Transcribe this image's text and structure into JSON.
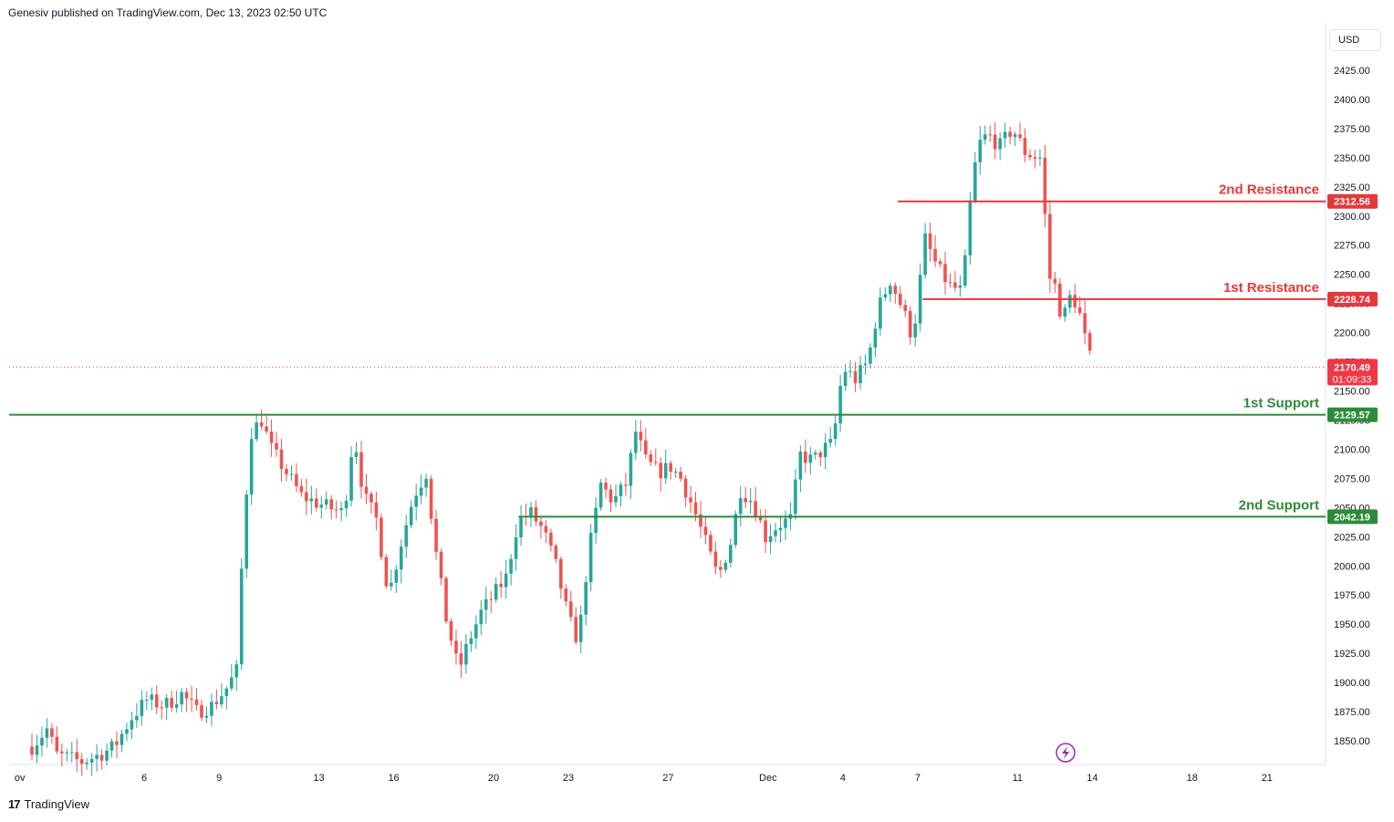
{
  "header": {
    "publisher_text": "Genesiv published on TradingView.com, Dec 13, 2023 02:50 UTC"
  },
  "footer": {
    "brand": "TradingView",
    "logo_glyph": "17"
  },
  "currency_label": "USD",
  "colors": {
    "up": "#26a69a",
    "down": "#ef5350",
    "resistance": "#e5383b",
    "support": "#2e8b3a",
    "axis_text": "#131722",
    "grid": "#f0f3fa",
    "price_tag": "#f23645"
  },
  "chart_data": {
    "type": "candlestick",
    "symbol_currency": "USD",
    "ylim": [
      1830,
      2440
    ],
    "y_ticks": [
      1850,
      1875,
      1900,
      1925,
      1950,
      1975,
      2000,
      2025,
      2050,
      2075,
      2100,
      2125,
      2150,
      2175,
      2200,
      2225,
      2250,
      2275,
      2300,
      2325,
      2350,
      2375,
      2400,
      2425
    ],
    "y_tick_labels": [
      "1850.00",
      "1875.00",
      "1900.00",
      "1925.00",
      "1950.00",
      "1975.00",
      "2000.00",
      "2025.00",
      "2050.00",
      "2075.00",
      "2100.00",
      "2125.00",
      "2150.00",
      "2175.00",
      "2200.00",
      "2225.00",
      "2250.00",
      "2275.00",
      "2300.00",
      "2325.00",
      "2350.00",
      "2375.00",
      "2400.00",
      "2425.00"
    ],
    "x_labels": [
      {
        "label": "ov",
        "day": -0.7
      },
      {
        "label": "6",
        "day": 4.5
      },
      {
        "label": "9",
        "day": 7.5
      },
      {
        "label": "13",
        "day": 11.5
      },
      {
        "label": "16",
        "day": 14.5
      },
      {
        "label": "20",
        "day": 18.5
      },
      {
        "label": "23",
        "day": 21.5
      },
      {
        "label": "27",
        "day": 25.5
      },
      {
        "label": "Dec",
        "day": 29.5
      },
      {
        "label": "4",
        "day": 32.5
      },
      {
        "label": "7",
        "day": 35.5
      },
      {
        "label": "11",
        "day": 39.5
      },
      {
        "label": "14",
        "day": 42.5
      },
      {
        "label": "18",
        "day": 46.5
      },
      {
        "label": "21",
        "day": 49.5
      }
    ],
    "levels": [
      {
        "name": "2nd Resistance",
        "value": 2312.56,
        "value_label": "2312.56",
        "kind": "resistance",
        "start_day": 34.7
      },
      {
        "name": "1st Resistance",
        "value": 2228.74,
        "value_label": "2228.74",
        "kind": "resistance",
        "start_day": 35.7
      },
      {
        "name": "1st Support",
        "value": 2129.57,
        "value_label": "2129.57",
        "kind": "support",
        "start_day": -1
      },
      {
        "name": "2nd Support",
        "value": 2042.19,
        "value_label": "2042.19",
        "kind": "support",
        "start_day": 19.5
      }
    ],
    "last_price": {
      "value": 2170.49,
      "value_label": "2170.49",
      "countdown": "01:09:33"
    },
    "anchors": [
      [
        0,
        1845
      ],
      [
        0.6,
        1860
      ],
      [
        1,
        1838
      ],
      [
        2,
        1832
      ],
      [
        2.7,
        1838
      ],
      [
        3.3,
        1845
      ],
      [
        4,
        1870
      ],
      [
        4.6,
        1885
      ],
      [
        5.3,
        1880
      ],
      [
        6,
        1890
      ],
      [
        6.6,
        1875
      ],
      [
        7.2,
        1880
      ],
      [
        7.8,
        1895
      ],
      [
        8.2,
        1910
      ],
      [
        8.5,
        2040
      ],
      [
        8.8,
        2115
      ],
      [
        9.2,
        2125
      ],
      [
        9.6,
        2100
      ],
      [
        10.2,
        2080
      ],
      [
        10.8,
        2060
      ],
      [
        11.3,
        2055
      ],
      [
        11.9,
        2050
      ],
      [
        12.5,
        2045
      ],
      [
        12.9,
        2115
      ],
      [
        13.3,
        2060
      ],
      [
        13.8,
        2040
      ],
      [
        14.3,
        1975
      ],
      [
        14.8,
        2020
      ],
      [
        15.3,
        2060
      ],
      [
        15.8,
        2080
      ],
      [
        16.2,
        2010
      ],
      [
        16.6,
        1955
      ],
      [
        17.1,
        1910
      ],
      [
        17.5,
        1935
      ],
      [
        18,
        1960
      ],
      [
        18.5,
        1975
      ],
      [
        19,
        1990
      ],
      [
        19.5,
        2040
      ],
      [
        20,
        2045
      ],
      [
        20.5,
        2030
      ],
      [
        21,
        2000
      ],
      [
        21.5,
        1955
      ],
      [
        21.9,
        1935
      ],
      [
        22.3,
        2010
      ],
      [
        22.8,
        2070
      ],
      [
        23.3,
        2055
      ],
      [
        23.8,
        2070
      ],
      [
        24.2,
        2115
      ],
      [
        24.6,
        2090
      ],
      [
        25.1,
        2080
      ],
      [
        25.6,
        2085
      ],
      [
        26,
        2075
      ],
      [
        26.5,
        2050
      ],
      [
        27,
        2020
      ],
      [
        27.5,
        1990
      ],
      [
        28,
        2020
      ],
      [
        28.4,
        2065
      ],
      [
        28.9,
        2055
      ],
      [
        29.4,
        2025
      ],
      [
        29.9,
        2035
      ],
      [
        30.4,
        2040
      ],
      [
        30.8,
        2095
      ],
      [
        31.3,
        2090
      ],
      [
        31.7,
        2100
      ],
      [
        32.1,
        2105
      ],
      [
        32.5,
        2170
      ],
      [
        33,
        2160
      ],
      [
        33.5,
        2175
      ],
      [
        33.9,
        2220
      ],
      [
        34.4,
        2245
      ],
      [
        34.9,
        2220
      ],
      [
        35.3,
        2195
      ],
      [
        35.8,
        2280
      ],
      [
        36.3,
        2255
      ],
      [
        36.8,
        2240
      ],
      [
        37.3,
        2235
      ],
      [
        37.6,
        2310
      ],
      [
        37.9,
        2360
      ],
      [
        38.3,
        2370
      ],
      [
        38.8,
        2360
      ],
      [
        39.3,
        2375
      ],
      [
        39.8,
        2355
      ],
      [
        40.3,
        2350
      ],
      [
        40.5,
        2350
      ],
      [
        40.7,
        2250
      ],
      [
        41,
        2240
      ],
      [
        41.3,
        2210
      ],
      [
        41.6,
        2230
      ],
      [
        41.9,
        2225
      ],
      [
        42.2,
        2195
      ],
      [
        42.5,
        2170
      ]
    ]
  }
}
